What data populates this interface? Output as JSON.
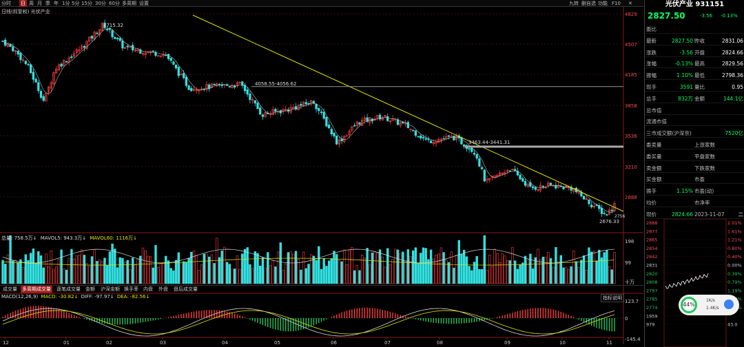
{
  "toolbar": {
    "items": [
      "分时",
      "日",
      "周",
      "月",
      "季",
      "年",
      "1分",
      "5分",
      "15分",
      "30分",
      "60分",
      "多周期",
      "设置"
    ],
    "active": "日",
    "right": [
      "九转",
      "删自选",
      "功能",
      "F10",
      "✕"
    ]
  },
  "chart_header": "日线(前复权) 光伏产业",
  "price_axis": [
    "4829",
    "4507",
    "4185",
    "3858",
    "3536",
    "3210",
    "2888"
  ],
  "annotations": {
    "high": "4715.32",
    "level1": "4058.55-4056.62",
    "level2": "3463.44-3441.31",
    "low": "2676.33",
    "right_partial": "2756"
  },
  "volume": {
    "legend_total": "总量: 758.5万↓",
    "legend_ma5": "MAVOL5: 943.3万↓",
    "legend_ma60": "MAVOL60: 1116万↓",
    "axis": [
      "198",
      "99",
      "十万"
    ]
  },
  "tabs": [
    "成交量",
    "多周期成交量",
    "逐笔成交量",
    "金额",
    "沪深金额",
    "换手率",
    "内盘",
    "外盘",
    "盘后成交量"
  ],
  "active_tab": "多周期成交量",
  "macd": {
    "legend_name": "MACD(12,26,9)",
    "legend_macd": "MACD: -30.82↓",
    "legend_diff": "DIFF: -97.97↓",
    "legend_dea": "DEA: -82.56↓",
    "help": "指标说明",
    "axis": [
      "123.7",
      "0",
      "-145.4"
    ]
  },
  "x_axis": [
    "12",
    "01",
    "02",
    "03",
    "04",
    "05",
    "06",
    "07",
    "08",
    "09",
    "10",
    "11"
  ],
  "right_panel": {
    "title": "光伏产业 931151",
    "price": "2827.50",
    "change": "-3.56",
    "change_pct": "-0.13%",
    "rows": [
      {
        "l1": "委比",
        "v1": "",
        "l2": "",
        "v2": ""
      },
      {
        "l1": "最新",
        "v1": "2827.50",
        "l2": "昨收",
        "v2": "2831.06"
      },
      {
        "l1": "涨跌",
        "v1": "-3.56",
        "l2": "开盘",
        "v2": "2824.66"
      },
      {
        "l1": "涨幅",
        "v1": "-0.13%",
        "l2": "最高",
        "v2": "2829.56"
      },
      {
        "l1": "振幅",
        "v1": "1.10%",
        "l2": "最低",
        "v2": "2798.36"
      },
      {
        "l1": "现手",
        "v1": "3591",
        "l2": "量比",
        "v2": "0.95"
      },
      {
        "l1": "总手",
        "v1": "832万",
        "l2": "金额",
        "v2": "144.1亿"
      },
      {
        "l1": "总市值",
        "v1": "",
        "l2": "",
        "v2": ""
      },
      {
        "l1": "流通市值",
        "v1": "",
        "l2": "",
        "v2": ""
      },
      {
        "l1": "三市成交额(沪深京)",
        "v1": "",
        "l2": "",
        "v2": "7520亿"
      },
      {
        "l1": "委卖量",
        "v1": "",
        "l2": "上涨家数",
        "v2": ""
      },
      {
        "l1": "委买量",
        "v1": "",
        "l2": "平盘家数",
        "v2": ""
      },
      {
        "l1": "卖金额",
        "v1": "",
        "l2": "下跌家数",
        "v2": ""
      },
      {
        "l1": "买金额",
        "v1": "",
        "l2": "市盈",
        "v2": ""
      },
      {
        "l1": "换手",
        "v1": "1.15%",
        "l2": "市盈(动)",
        "v2": ""
      },
      {
        "l1": "均价",
        "v1": "",
        "l2": "市净率",
        "v2": ""
      },
      {
        "l1": "现价",
        "v1": "2824.66",
        "l2": "2023-11-07",
        "v2": "二"
      }
    ],
    "mini_left": [
      "2888",
      "2877",
      "2865",
      "2854",
      "2842",
      "2831",
      "2820",
      "2808",
      "2797",
      "2785",
      "2774",
      "1959",
      "979"
    ],
    "mini_right": [
      "2.01%",
      "1.61%",
      "1.21%",
      "0.80%",
      "0.40%",
      "0.00%",
      "0.39%",
      "0.79%",
      "1.19%",
      "1.60%",
      "2.00%",
      "",
      "43.0"
    ],
    "badge_pct": "44%",
    "badge_up": "1K/s",
    "badge_down": "1.4K/s"
  },
  "colors": {
    "up": "#ff3b3b",
    "down": "#33e0e0",
    "ma": "#e8e800",
    "green": "#00ff66"
  }
}
